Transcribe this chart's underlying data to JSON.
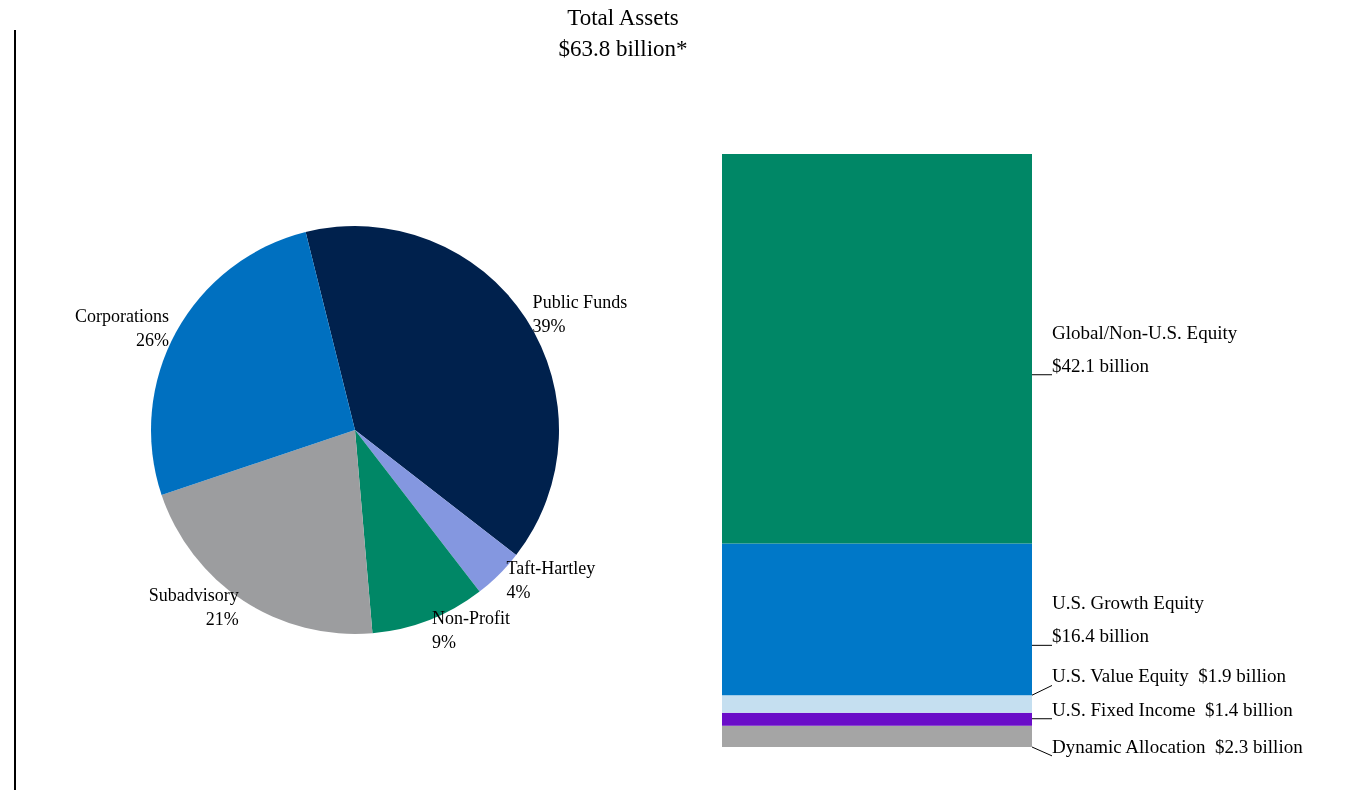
{
  "chart_data": [
    {
      "type": "pie",
      "title": "Total Assets",
      "subtitle": "$63.8 billion*",
      "categories": [
        "Public Funds",
        "Taft-Hartley",
        "Non-Profit",
        "Subadvisory",
        "Corporations"
      ],
      "values": [
        39,
        4,
        9,
        21,
        26
      ],
      "value_labels": [
        "39%",
        "4%",
        "9%",
        "21%",
        "26%"
      ],
      "colors": [
        "#00214d",
        "#8497e0",
        "#008766",
        "#9c9d9f",
        "#0070c0"
      ],
      "legend": false
    },
    {
      "type": "bar",
      "stacked": true,
      "categories": [
        null
      ],
      "series": [
        {
          "name": "Dynamic Allocation",
          "color": "#a5a5a5",
          "values": [
            2.3
          ],
          "value_labels": [
            "$2.3 billion"
          ]
        },
        {
          "name": "U.S. Fixed Income",
          "color": "#6a0dc8",
          "values": [
            1.4
          ],
          "value_labels": [
            "$1.4 billion"
          ]
        },
        {
          "name": "U.S. Value Equity",
          "color": "#c5dff0",
          "values": [
            1.9
          ],
          "value_labels": [
            "$1.9 billion"
          ]
        },
        {
          "name": "U.S. Growth Equity",
          "color": "#0078c8",
          "values": [
            16.4
          ],
          "value_labels": [
            "$16.4 billion"
          ]
        },
        {
          "name": "Global/Non-U.S. Equity",
          "color": "#008766",
          "values": [
            42.1
          ],
          "value_labels": [
            "$42.1 billion"
          ]
        }
      ],
      "legend": false
    }
  ]
}
